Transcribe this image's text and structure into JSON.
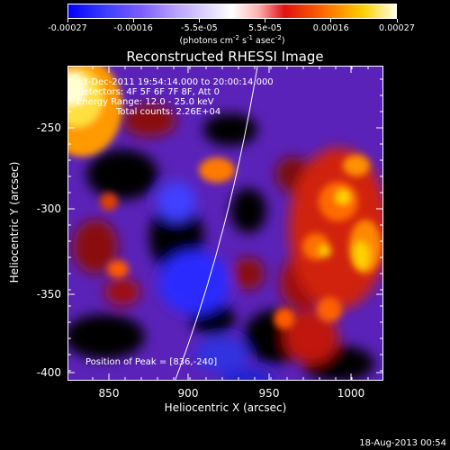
{
  "colorbar": {
    "tick_labels": [
      "-0.00027",
      "-0.00016",
      "-5.5e-05",
      "5.5e-05",
      "0.00016",
      "0.00027"
    ],
    "unit_label": "(photons cm",
    "unit_exp1": "-2",
    "unit_mid": " s",
    "unit_exp2": "-1",
    "unit_mid2": " asec",
    "unit_exp3": "-2",
    "unit_end": ")"
  },
  "plot": {
    "title": "Reconstructed RHESSI Image",
    "xlabel": "Heliocentric X (arcsec)",
    "ylabel": "Heliocentric Y (arcsec)",
    "x_ticks": [
      "850",
      "900",
      "950",
      "1000"
    ],
    "y_ticks": [
      "-250",
      "-300",
      "-350",
      "-400"
    ],
    "annotations": {
      "time": "13-Dec-2011 19:54:14.000 to 20:00:14.000",
      "detectors": "Detectors: 4F 5F 6F 7F 8F, Att 0",
      "energy": "Energy Range: 12.0 - 25.0 keV",
      "counts": "Total counts: 2.26E+04",
      "peak": "Position of Peak = [836,-240]"
    }
  },
  "footer": {
    "date": "18-Aug-2013 00:54"
  }
}
